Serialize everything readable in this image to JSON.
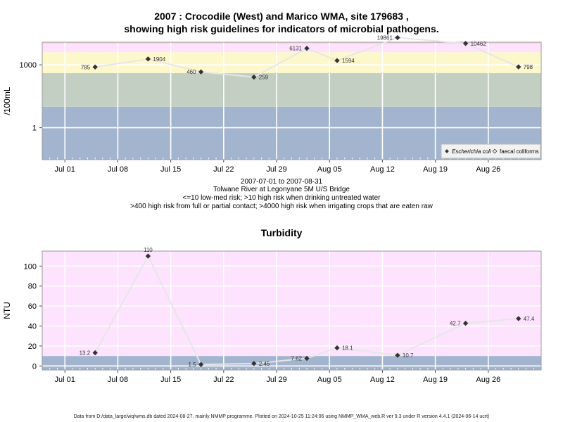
{
  "chart_data": [
    {
      "type": "line",
      "title_line1": "2007 : Crocodile (West) and Marico WMA, site 179683 ,",
      "title_line2": "showing high risk guidelines for indicators of microbial pathogens.",
      "ylabel": "/100mL",
      "yscale": "log",
      "yticks": [
        1,
        1000
      ],
      "ylim": [
        0.03,
        12000
      ],
      "x": [
        "2007-07-05",
        "2007-07-12",
        "2007-07-19",
        "2007-07-26",
        "2007-08-02",
        "2007-08-06",
        "2007-08-14",
        "2007-08-23",
        "2007-08-30"
      ],
      "series": [
        {
          "name": "Escherichia coli",
          "values": [
            785,
            1904,
            460,
            259,
            6131,
            1594,
            19861,
            10462,
            798
          ],
          "labels": [
            "785",
            "1904",
            "460",
            "259",
            "6131",
            "1594",
            "19861",
            "10462",
            "798"
          ]
        }
      ],
      "legend": {
        "entries": [
          "Escherichia coli",
          "faecal coliforms"
        ],
        "position": "bottom-right"
      },
      "bands": [
        {
          "from": 0.03,
          "to": 10,
          "color": "#a3b4cf"
        },
        {
          "from": 10,
          "to": 400,
          "color": "#c4cfc3"
        },
        {
          "from": 400,
          "to": 4000,
          "color": "#fdf8cb"
        },
        {
          "from": 4000,
          "to": 10000,
          "color": "#fde3fd"
        },
        {
          "from": 10000,
          "to": 12000,
          "color": "#fdd2df"
        }
      ]
    },
    {
      "type": "line",
      "title": "Turbidity",
      "ylabel": "NTU",
      "yticks": [
        0,
        20,
        40,
        60,
        80,
        100
      ],
      "ylim": [
        -4,
        115
      ],
      "x": [
        "2007-07-05",
        "2007-07-12",
        "2007-07-19",
        "2007-07-26",
        "2007-08-02",
        "2007-08-06",
        "2007-08-14",
        "2007-08-23",
        "2007-08-30"
      ],
      "series": [
        {
          "name": "",
          "values": [
            13.2,
            110,
            1.5,
            2.45,
            7.62,
            18.1,
            10.7,
            42.7,
            47.4
          ],
          "labels": [
            "13.2",
            "110",
            "1.5",
            "2.45",
            "7.62",
            "18.1",
            "10.7",
            "42.7",
            "47.4"
          ]
        }
      ],
      "bands": [
        {
          "from": -4,
          "to": 10,
          "color": "#a3b4cf"
        },
        {
          "from": 10,
          "to": 115,
          "color": "#fde3fd"
        }
      ]
    }
  ],
  "xaxis": {
    "range": [
      "2007-06-28",
      "2007-09-02"
    ],
    "ticks": [
      {
        "date": "2007-07-01",
        "label": "Jul 01"
      },
      {
        "date": "2007-07-08",
        "label": "Jul 08"
      },
      {
        "date": "2007-07-15",
        "label": "Jul 15"
      },
      {
        "date": "2007-07-22",
        "label": "Jul 22"
      },
      {
        "date": "2007-07-29",
        "label": "Jul 29"
      },
      {
        "date": "2007-08-05",
        "label": "Aug 05"
      },
      {
        "date": "2007-08-12",
        "label": "Aug 12"
      },
      {
        "date": "2007-08-19",
        "label": "Aug 19"
      },
      {
        "date": "2007-08-26",
        "label": "Aug 26"
      }
    ]
  },
  "caption": {
    "line1": "2007-07-01 to 2007-08-31",
    "line2": "Tolwane River at Legonyane 5M U/S Bridge",
    "line3": "<=10 low-med risk; >10 high risk when drinking untreated water",
    "line4": ">400 high risk from full or partial contact; >4000 high risk when irrigating crops that are eaten raw"
  },
  "footer": "Data from D:/data_large/wq/wms.db dated 2024-08-27, mainly NMMP programme. Plotted on 2024-10-25 11:24:06 using NMMP_WMA_web.R ver 9.3 under R version 4.4.1 (2024-06-14 ucrt)"
}
